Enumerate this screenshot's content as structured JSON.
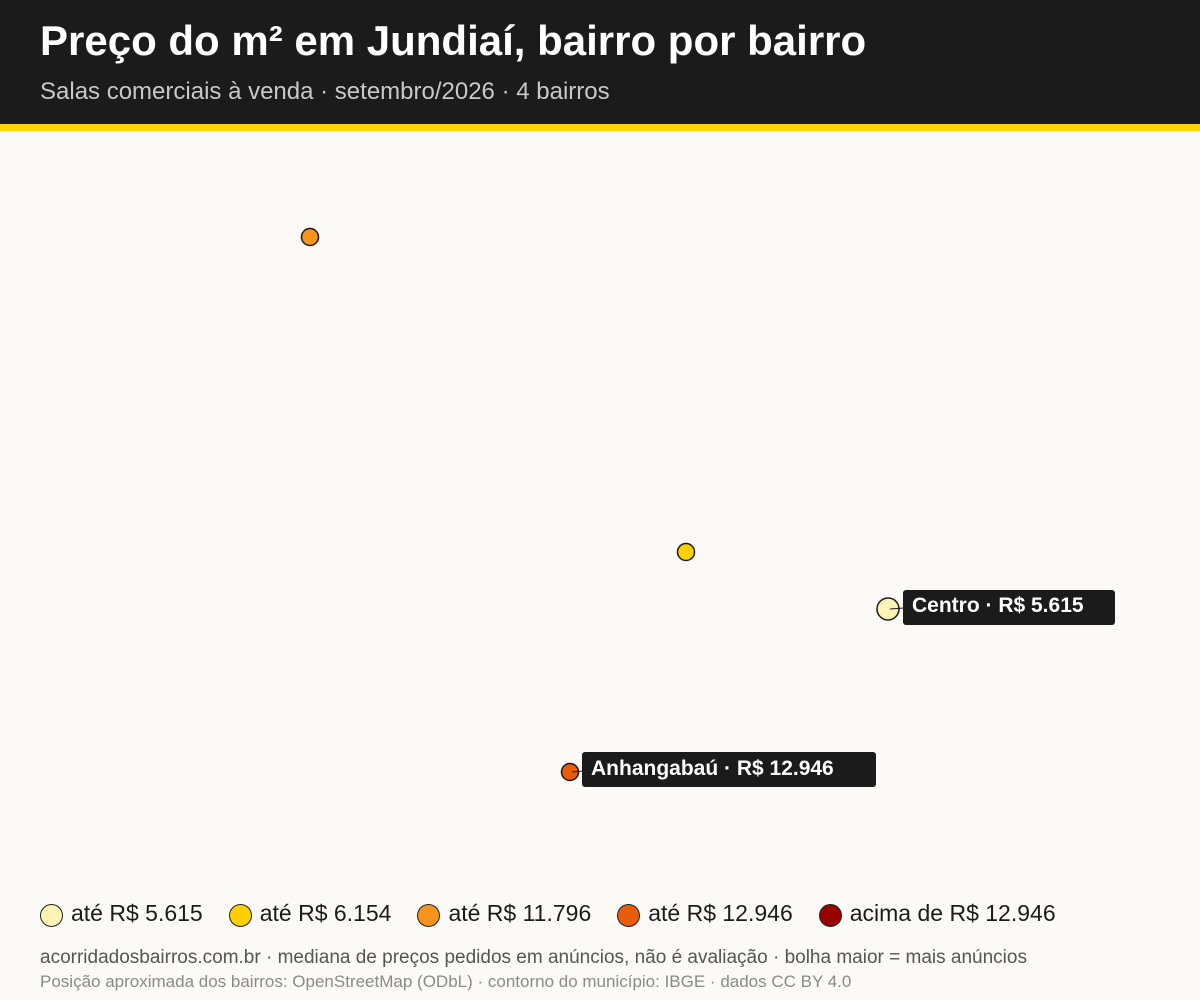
{
  "header": {
    "title": "Preço do m² em Jundiaí, bairro por bairro",
    "subtitle": "Salas comerciais à venda · setembro/2026 · 4 bairros"
  },
  "map": {
    "points": [
      {
        "id": "p1",
        "color": "#f7941d",
        "label": null
      },
      {
        "id": "p2",
        "color": "#ffd000",
        "label": null
      },
      {
        "id": "centro",
        "color": "#fdf3b5",
        "label": "Centro · R$ 5.615"
      },
      {
        "id": "anhangabau",
        "color": "#e85d0c",
        "label": "Anhangabaú · R$ 12.946"
      }
    ]
  },
  "legend": {
    "items": [
      {
        "label": "até R$ 5.615",
        "color": "#fdf3b5"
      },
      {
        "label": "até R$ 6.154",
        "color": "#ffd000"
      },
      {
        "label": "até R$ 11.796",
        "color": "#f7941d"
      },
      {
        "label": "até R$ 12.946",
        "color": "#e85d0c"
      },
      {
        "label": "acima de R$ 12.946",
        "color": "#9b0000"
      }
    ]
  },
  "footer": {
    "line1": "acorridadosbairros.com.br · mediana de preços pedidos em anúncios, não é avaliação · bolha maior = mais anúncios",
    "line2": "Posição aproximada dos bairros: OpenStreetMap (ODbL) · contorno do município: IBGE · dados CC BY 4.0"
  }
}
